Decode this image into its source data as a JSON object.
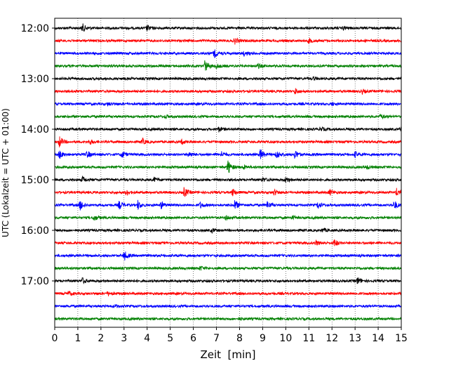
{
  "chart_data": {
    "type": "line",
    "title": "",
    "xlabel": "Zeit  [min]",
    "ylabel": "UTC (Lokalzeit = UTC + 01:00)",
    "xlim": [
      0,
      15
    ],
    "x_ticks": [
      0,
      1,
      2,
      3,
      4,
      5,
      6,
      7,
      8,
      9,
      10,
      11,
      12,
      13,
      14,
      15
    ],
    "x_tick_labels": [
      "0",
      "1",
      "2",
      "3",
      "4",
      "5",
      "6",
      "7",
      "8",
      "9",
      "10",
      "11",
      "12",
      "13",
      "14",
      "15"
    ],
    "y_tick_labels": [
      "12:00",
      "13:00",
      "14:00",
      "15:00",
      "16:00",
      "17:00"
    ],
    "grid": "vertical dotted at every minute",
    "trace_colors": [
      "#000000",
      "#ff0000",
      "#0000ff",
      "#008000"
    ],
    "traces": [
      {
        "start": "12:00",
        "color": "#000000",
        "events": [
          [
            1.2,
            6
          ],
          [
            4.0,
            4
          ],
          [
            12.5,
            2.5
          ]
        ]
      },
      {
        "start": "12:15",
        "color": "#ff0000",
        "events": [
          [
            7.8,
            4
          ],
          [
            11.0,
            3
          ]
        ]
      },
      {
        "start": "12:30",
        "color": "#0000ff",
        "events": [
          [
            6.9,
            6
          ],
          [
            8.2,
            3
          ]
        ]
      },
      {
        "start": "12:45",
        "color": "#008000",
        "events": [
          [
            6.5,
            8
          ],
          [
            7.0,
            3
          ],
          [
            8.8,
            3
          ]
        ]
      },
      {
        "start": "13:00",
        "color": "#000000",
        "events": [
          [
            11.2,
            2
          ]
        ]
      },
      {
        "start": "13:15",
        "color": "#ff0000",
        "events": [
          [
            10.4,
            4
          ],
          [
            13.3,
            3
          ]
        ]
      },
      {
        "start": "13:30",
        "color": "#0000ff",
        "events": [
          [
            2.3,
            2
          ],
          [
            12.0,
            2
          ]
        ]
      },
      {
        "start": "13:45",
        "color": "#008000",
        "events": [
          [
            14.1,
            3
          ],
          [
            4.8,
            2
          ]
        ]
      },
      {
        "start": "14:00",
        "color": "#000000",
        "events": [
          [
            7.1,
            3
          ],
          [
            11.5,
            3
          ],
          [
            15.0,
            4
          ]
        ]
      },
      {
        "start": "14:15",
        "color": "#ff0000",
        "events": [
          [
            0.2,
            8
          ],
          [
            1.5,
            4
          ],
          [
            3.8,
            4
          ],
          [
            5.5,
            3
          ]
        ]
      },
      {
        "start": "14:30",
        "color": "#0000ff",
        "events": [
          [
            0.2,
            6
          ],
          [
            1.4,
            5
          ],
          [
            2.9,
            5
          ],
          [
            5.8,
            4
          ],
          [
            7.2,
            4
          ],
          [
            8.9,
            8
          ],
          [
            9.6,
            6
          ],
          [
            10.4,
            6
          ],
          [
            13.0,
            4
          ]
        ]
      },
      {
        "start": "14:45",
        "color": "#008000",
        "events": [
          [
            7.5,
            10
          ],
          [
            8.2,
            3
          ],
          [
            13.5,
            3
          ]
        ]
      },
      {
        "start": "15:00",
        "color": "#000000",
        "events": [
          [
            1.2,
            4
          ],
          [
            4.3,
            3
          ],
          [
            9.0,
            3
          ],
          [
            10.0,
            4
          ]
        ]
      },
      {
        "start": "15:15",
        "color": "#ff0000",
        "events": [
          [
            3.1,
            4
          ],
          [
            5.6,
            7
          ],
          [
            7.7,
            5
          ],
          [
            9.5,
            4
          ],
          [
            11.9,
            4
          ],
          [
            14.8,
            5
          ]
        ]
      },
      {
        "start": "15:30",
        "color": "#0000ff",
        "events": [
          [
            1.1,
            7
          ],
          [
            2.8,
            6
          ],
          [
            3.6,
            6
          ],
          [
            4.6,
            5
          ],
          [
            6.3,
            4
          ],
          [
            7.8,
            7
          ],
          [
            9.2,
            5
          ],
          [
            11.4,
            5
          ],
          [
            14.7,
            6
          ]
        ]
      },
      {
        "start": "15:45",
        "color": "#008000",
        "events": [
          [
            1.7,
            4
          ],
          [
            7.4,
            3
          ],
          [
            10.3,
            2
          ]
        ]
      },
      {
        "start": "16:00",
        "color": "#000000",
        "events": [
          [
            6.8,
            3
          ],
          [
            11.6,
            3
          ]
        ]
      },
      {
        "start": "16:15",
        "color": "#ff0000",
        "events": [
          [
            11.3,
            3
          ],
          [
            12.1,
            5
          ]
        ]
      },
      {
        "start": "16:30",
        "color": "#0000ff",
        "events": [
          [
            3.0,
            7
          ]
        ]
      },
      {
        "start": "16:45",
        "color": "#008000",
        "events": [
          [
            6.3,
            3
          ]
        ]
      },
      {
        "start": "17:00",
        "color": "#000000",
        "events": [
          [
            1.2,
            4
          ],
          [
            13.1,
            5
          ]
        ]
      },
      {
        "start": "17:15",
        "color": "#ff0000",
        "events": [
          [
            0.6,
            3
          ],
          [
            2.3,
            3
          ]
        ]
      },
      {
        "start": "17:30",
        "color": "#0000ff",
        "events": [
          [
            2.6,
            2
          ]
        ]
      },
      {
        "start": "17:45",
        "color": "#008000",
        "events": [
          [
            8.0,
            1.5
          ]
        ]
      }
    ]
  }
}
